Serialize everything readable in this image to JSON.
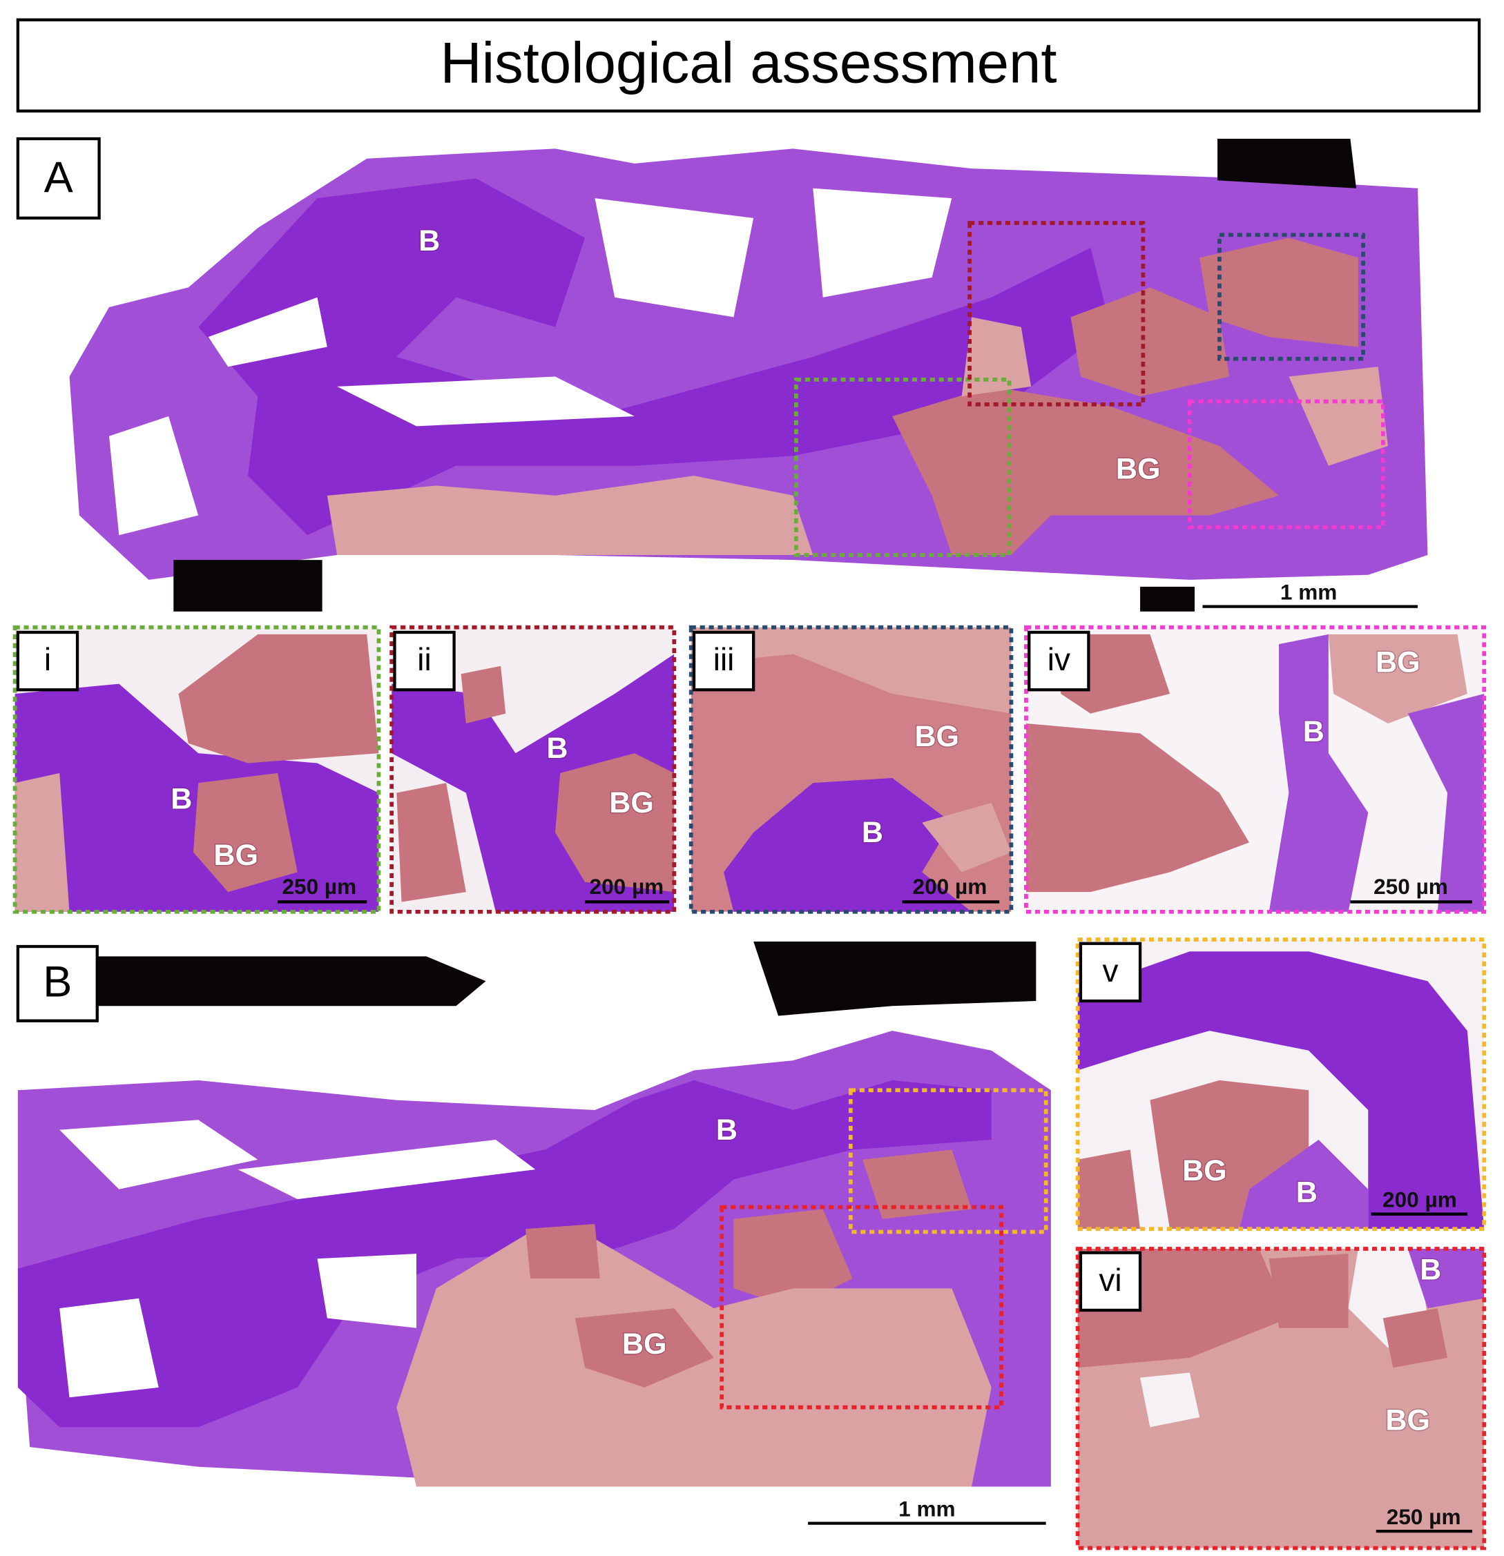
{
  "title": "Histological assessment",
  "panels": [
    {
      "label": "A",
      "tissue_labels": [
        "B",
        "BG"
      ],
      "scale_bar": "1 mm"
    },
    {
      "label": "B",
      "tissue_labels": [
        "B",
        "BG"
      ],
      "scale_bar": "1 mm"
    }
  ],
  "insets": [
    {
      "label": "i",
      "tissue_labels": [
        "B",
        "BG"
      ],
      "scale_bar": "250 µm"
    },
    {
      "label": "ii",
      "tissue_labels": [
        "B",
        "BG"
      ],
      "scale_bar": "200 µm"
    },
    {
      "label": "iii",
      "tissue_labels": [
        "BG",
        "B"
      ],
      "scale_bar": "200 µm"
    },
    {
      "label": "iv",
      "tissue_labels": [
        "BG",
        "B"
      ],
      "scale_bar": "250 µm"
    },
    {
      "label": "v",
      "tissue_labels": [
        "BG",
        "B"
      ],
      "scale_bar": "200 µm"
    },
    {
      "label": "vi",
      "tissue_labels": [
        "B",
        "BG"
      ],
      "scale_bar": "250 µm"
    }
  ]
}
